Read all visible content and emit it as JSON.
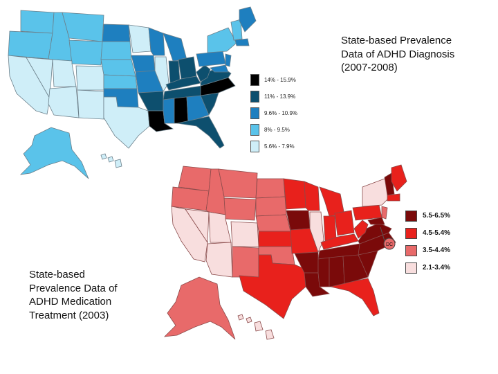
{
  "map_top": {
    "title_lines": [
      "State-based Prevalence",
      "Data of ADHD Diagnosis",
      "(2007-2008)"
    ],
    "legend": [
      {
        "label": "14% - 15.9%",
        "color": "#000000"
      },
      {
        "label": "11% - 13.9%",
        "color": "#0d4f6e"
      },
      {
        "label": "9.6% - 10.9%",
        "color": "#1e7fbf"
      },
      {
        "label": "8% - 9.5%",
        "color": "#5ac3ea"
      },
      {
        "label": "5.6% - 7.9%",
        "color": "#cfeef8"
      }
    ]
  },
  "map_bottom": {
    "title_lines": [
      "State-based",
      "Prevalence Data of",
      "ADHD Medication",
      "Treatment (2003)"
    ],
    "dc_label": "DC",
    "legend": [
      {
        "label": "5.5-6.5%",
        "color": "#7a0a0a"
      },
      {
        "label": "4.5-5.4%",
        "color": "#e8211c"
      },
      {
        "label": "3.5-4.4%",
        "color": "#e86a6a"
      },
      {
        "label": "2.1-3.4%",
        "color": "#f8dede"
      }
    ]
  }
}
